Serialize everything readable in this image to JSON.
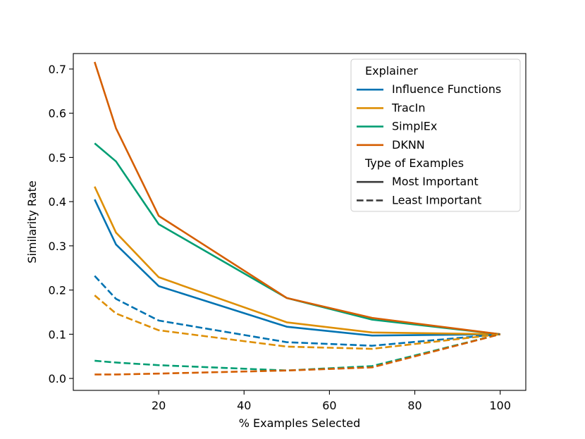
{
  "chart_data": {
    "type": "line",
    "title": "",
    "xlabel": "% Examples Selected",
    "ylabel": "Similarity Rate",
    "xlim": [
      0,
      106
    ],
    "ylim": [
      -0.027,
      0.735
    ],
    "x_ticks": [
      20,
      40,
      60,
      80,
      100
    ],
    "x_tick_labels": [
      "20",
      "40",
      "60",
      "80",
      "100"
    ],
    "y_ticks": [
      0.0,
      0.1,
      0.2,
      0.3,
      0.4,
      0.5,
      0.6,
      0.7
    ],
    "y_tick_labels": [
      "0.0",
      "0.1",
      "0.2",
      "0.3",
      "0.4",
      "0.5",
      "0.6",
      "0.7"
    ],
    "grid": false,
    "legend": {
      "placement": "top-right",
      "title_hue": "Explainer",
      "title_style": "Type of Examples",
      "style_entries": [
        {
          "label": "Most Important",
          "dash": "solid"
        },
        {
          "label": "Least Important",
          "dash": "dashed"
        }
      ]
    },
    "series": [
      {
        "name": "Influence Functions",
        "type": "Most Important",
        "color": "#0173b2",
        "x": [
          5,
          10,
          20,
          50,
          70,
          100
        ],
        "values": [
          0.405,
          0.303,
          0.209,
          0.117,
          0.097,
          0.1
        ]
      },
      {
        "name": "TracIn",
        "type": "Most Important",
        "color": "#de8f05",
        "x": [
          5,
          10,
          20,
          50,
          70,
          100
        ],
        "values": [
          0.434,
          0.33,
          0.229,
          0.127,
          0.104,
          0.1
        ]
      },
      {
        "name": "SimplEx",
        "type": "Most Important",
        "color": "#029e73",
        "x": [
          5,
          10,
          20,
          50,
          70,
          100
        ],
        "values": [
          0.532,
          0.491,
          0.349,
          0.182,
          0.133,
          0.1
        ]
      },
      {
        "name": "DKNN",
        "type": "Most Important",
        "color": "#d55e00",
        "x": [
          5,
          10,
          20,
          50,
          70,
          100
        ],
        "values": [
          0.716,
          0.566,
          0.368,
          0.182,
          0.137,
          0.1
        ]
      },
      {
        "name": "Influence Functions",
        "type": "Least Important",
        "color": "#0173b2",
        "x": [
          5,
          10,
          20,
          50,
          70,
          100
        ],
        "values": [
          0.232,
          0.18,
          0.131,
          0.082,
          0.074,
          0.1
        ]
      },
      {
        "name": "TracIn",
        "type": "Least Important",
        "color": "#de8f05",
        "x": [
          5,
          10,
          20,
          50,
          70,
          100
        ],
        "values": [
          0.188,
          0.147,
          0.109,
          0.072,
          0.067,
          0.1
        ]
      },
      {
        "name": "SimplEx",
        "type": "Least Important",
        "color": "#029e73",
        "x": [
          5,
          10,
          20,
          50,
          70,
          100
        ],
        "values": [
          0.04,
          0.036,
          0.03,
          0.018,
          0.028,
          0.1
        ]
      },
      {
        "name": "DKNN",
        "type": "Least Important",
        "color": "#d55e00",
        "x": [
          5,
          10,
          20,
          50,
          70,
          100
        ],
        "values": [
          0.009,
          0.009,
          0.011,
          0.018,
          0.025,
          0.1
        ]
      }
    ]
  }
}
